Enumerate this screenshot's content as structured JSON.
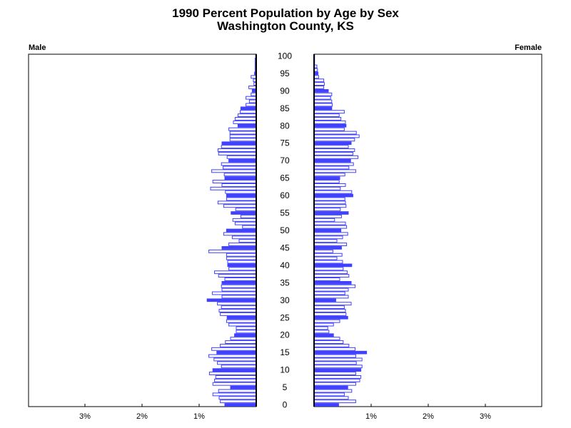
{
  "page": {
    "title": "1990 Percent Population by Age by Sex",
    "subtitle": "Washington County, KS",
    "male_label": "Male",
    "female_label": "Female"
  },
  "colors": {
    "bar_fill": "#4040ff",
    "bar_outline": "#4040ff",
    "axis": "#000000"
  },
  "chart_data": {
    "type": "bar",
    "orientation": "horizontal-population-pyramid",
    "title": "1990 Percent Population by Age by Sex",
    "subtitle": "Washington County, KS",
    "ages": [
      0,
      1,
      2,
      3,
      4,
      5,
      6,
      7,
      8,
      9,
      10,
      11,
      12,
      13,
      14,
      15,
      16,
      17,
      18,
      19,
      20,
      21,
      22,
      23,
      24,
      25,
      26,
      27,
      28,
      29,
      30,
      31,
      32,
      33,
      34,
      35,
      36,
      37,
      38,
      39,
      40,
      41,
      42,
      43,
      44,
      45,
      46,
      47,
      48,
      49,
      50,
      51,
      52,
      53,
      54,
      55,
      56,
      57,
      58,
      59,
      60,
      61,
      62,
      63,
      64,
      65,
      66,
      67,
      68,
      69,
      70,
      71,
      72,
      73,
      74,
      75,
      76,
      77,
      78,
      79,
      80,
      81,
      82,
      83,
      84,
      85,
      86,
      87,
      88,
      89,
      90,
      91,
      92,
      93,
      94,
      95,
      96,
      97,
      98,
      99,
      100
    ],
    "age_ticks": [
      0,
      5,
      10,
      15,
      20,
      25,
      30,
      35,
      40,
      45,
      50,
      55,
      60,
      65,
      70,
      75,
      80,
      85,
      90,
      95,
      100
    ],
    "pct_ticks": [
      1,
      2,
      3
    ],
    "pct_tick_labels": [
      "1%",
      "2%",
      "3%"
    ],
    "xlim": [
      0,
      4
    ],
    "series": [
      {
        "name": "Male",
        "values": [
          0.55,
          0.63,
          0.65,
          0.76,
          0.66,
          0.45,
          0.76,
          0.73,
          0.71,
          0.82,
          0.76,
          0.61,
          0.68,
          0.74,
          0.83,
          0.69,
          0.78,
          0.63,
          0.54,
          0.45,
          0.38,
          0.35,
          0.35,
          0.48,
          0.52,
          0.51,
          0.63,
          0.65,
          0.61,
          0.68,
          0.86,
          0.6,
          0.77,
          0.6,
          0.61,
          0.6,
          0.55,
          0.66,
          0.73,
          0.48,
          0.5,
          0.5,
          0.52,
          0.52,
          0.83,
          0.6,
          0.48,
          0.3,
          0.42,
          0.57,
          0.52,
          0.24,
          0.37,
          0.41,
          0.27,
          0.44,
          0.36,
          0.57,
          0.67,
          0.52,
          0.52,
          0.54,
          0.8,
          0.6,
          0.76,
          0.55,
          0.56,
          0.78,
          0.58,
          0.61,
          0.48,
          0.51,
          0.66,
          0.67,
          0.61,
          0.6,
          0.46,
          0.46,
          0.46,
          0.48,
          0.32,
          0.4,
          0.37,
          0.32,
          0.28,
          0.27,
          0.18,
          0.12,
          0.18,
          0.09,
          0.07,
          0.13,
          0.04,
          0.05,
          0.09,
          0.03,
          0.02,
          0.02,
          0.02,
          0.02,
          0.01
        ],
        "highlight_every": 5
      },
      {
        "name": "Female",
        "values": [
          0.43,
          0.73,
          0.6,
          0.53,
          0.66,
          0.59,
          0.73,
          0.8,
          0.82,
          0.73,
          0.82,
          0.84,
          0.74,
          0.84,
          0.73,
          0.92,
          0.72,
          0.61,
          0.51,
          0.45,
          0.34,
          0.26,
          0.24,
          0.34,
          0.45,
          0.59,
          0.56,
          0.55,
          0.53,
          0.65,
          0.38,
          0.6,
          0.54,
          0.6,
          0.72,
          0.65,
          0.45,
          0.61,
          0.58,
          0.51,
          0.66,
          0.5,
          0.4,
          0.49,
          0.33,
          0.48,
          0.57,
          0.4,
          0.5,
          0.59,
          0.47,
          0.57,
          0.55,
          0.36,
          0.48,
          0.6,
          0.46,
          0.56,
          0.55,
          0.54,
          0.68,
          0.66,
          0.46,
          0.55,
          0.44,
          0.45,
          0.54,
          0.73,
          0.61,
          0.69,
          0.64,
          0.77,
          0.68,
          0.71,
          0.6,
          0.65,
          0.71,
          0.79,
          0.74,
          0.53,
          0.56,
          0.55,
          0.47,
          0.44,
          0.53,
          0.31,
          0.32,
          0.31,
          0.29,
          0.31,
          0.25,
          0.17,
          0.18,
          0.17,
          0.08,
          0.07,
          0.06,
          0.05,
          0.01,
          0.01,
          0.01
        ]
      }
    ]
  }
}
